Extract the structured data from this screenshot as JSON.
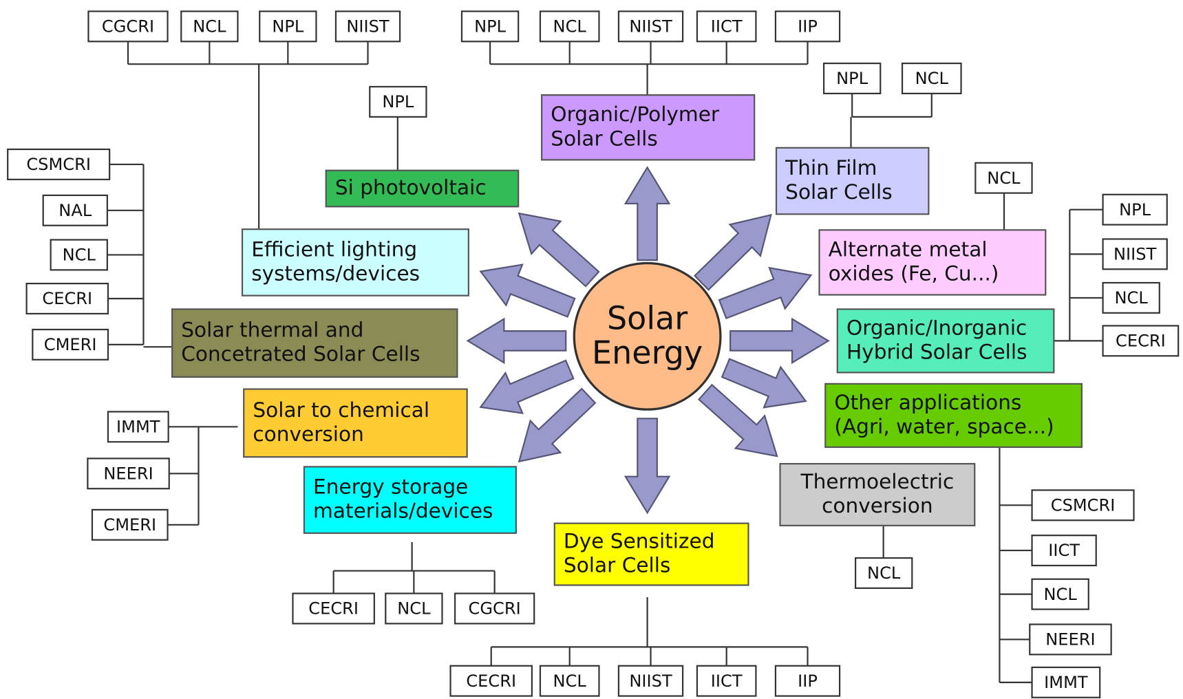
{
  "center": {
    "lines": [
      "Solar",
      "Energy"
    ],
    "color": "#ffbb88"
  },
  "topics": [
    {
      "lines": [
        "Si photovoltaic"
      ],
      "color": "#33bb55",
      "institutes": [
        "NPL"
      ]
    },
    {
      "lines": [
        "Organic/Polymer",
        "Solar Cells"
      ],
      "color": "#cc99ff",
      "institutes": [
        "NPL",
        "NCL",
        "NIIST",
        "IICT",
        "IIP"
      ]
    },
    {
      "lines": [
        "Thin Film",
        "Solar Cells"
      ],
      "color": "#ccccff",
      "institutes": [
        "NPL",
        "NCL"
      ]
    },
    {
      "lines": [
        "Alternate metal",
        "oxides (Fe, Cu...)"
      ],
      "color": "#ffccff",
      "institutes": [
        "NCL"
      ]
    },
    {
      "lines": [
        "Organic/Inorganic",
        "Hybrid Solar Cells"
      ],
      "color": "#55eebb",
      "institutes": [
        "NPL",
        "NIIST",
        "NCL",
        "CECRI"
      ]
    },
    {
      "lines": [
        "Other applications",
        "(Agri, water, space...)"
      ],
      "color": "#66cc00",
      "institutes": [
        "CSMCRI",
        "IICT",
        "NCL",
        "NEERI",
        "IMMT"
      ]
    },
    {
      "lines": [
        "Thermoelectric",
        "conversion"
      ],
      "color": "#cccccc",
      "institutes": [
        "NCL"
      ]
    },
    {
      "lines": [
        "Dye Sensitized",
        "Solar Cells"
      ],
      "color": "#ffff00",
      "institutes": [
        "CECRI",
        "NCL",
        "NIIST",
        "IICT",
        "IIP"
      ]
    },
    {
      "lines": [
        "Energy storage",
        "materials/devices"
      ],
      "color": "#00ffff",
      "institutes": [
        "CECRI",
        "NCL",
        "CGCRI"
      ]
    },
    {
      "lines": [
        "Solar to chemical",
        "conversion"
      ],
      "color": "#ffcc33",
      "institutes": [
        "IMMT",
        "NEERI",
        "CMERI"
      ]
    },
    {
      "lines": [
        "Solar thermal and",
        "Concetrated Solar Cells"
      ],
      "color": "#8b8b55",
      "institutes": [
        "CSMCRI",
        "NAL",
        "NCL",
        "CECRI",
        "CMERI"
      ]
    },
    {
      "lines": [
        "Efficient lighting",
        "systems/devices"
      ],
      "color": "#ccffff",
      "institutes": [
        "CGCRI",
        "NCL",
        "NPL",
        "NIIST"
      ]
    }
  ]
}
